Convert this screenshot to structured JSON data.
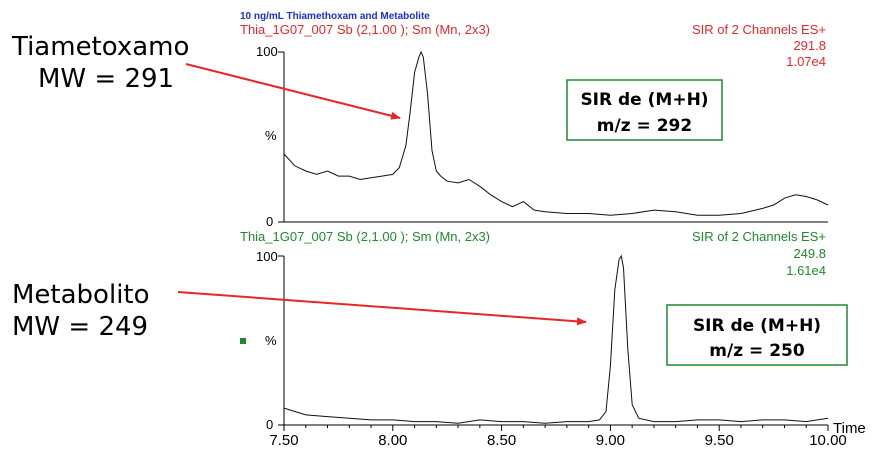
{
  "header": {
    "title": "10 ng/mL Thiamethoxam and Metabolite",
    "title_color": "#1f2fd0"
  },
  "annotations": {
    "top_compound": "Tiametoxamo",
    "top_mw": "MW = 291",
    "bottom_compound": "Metabolito",
    "bottom_mw": "MW = 249",
    "arrow_color": "#e8262a",
    "box_color": "#1e8a2f"
  },
  "chart_data": [
    {
      "type": "line",
      "title": "Thia_1G07_007 Sb (2,1.00 ); Sm (Mn, 2x3)",
      "channel_info": "SIR of 2 Channels ES+",
      "mass": "291.8",
      "intensity": "1.07e4",
      "label_color": "#e8262a",
      "ylabel": "%",
      "ylim": [
        0,
        100
      ],
      "yticks": [
        "100",
        "0"
      ],
      "xlim": [
        7.5,
        10.0
      ],
      "box_line1": "SIR de (M+H)",
      "box_line2": "m/z = 292",
      "series": [
        {
          "x": [
            7.5,
            7.55,
            7.6,
            7.65,
            7.7,
            7.75,
            7.8,
            7.85,
            7.9,
            7.95,
            8.0,
            8.03,
            8.06,
            8.08,
            8.1,
            8.12,
            8.13,
            8.14,
            8.16,
            8.18,
            8.2,
            8.22,
            8.25,
            8.3,
            8.35,
            8.4,
            8.45,
            8.5,
            8.55,
            8.6,
            8.65,
            8.7,
            8.8,
            8.9,
            9.0,
            9.1,
            9.2,
            9.3,
            9.4,
            9.5,
            9.6,
            9.7,
            9.75,
            9.8,
            9.85,
            9.9,
            9.95,
            10.0
          ],
          "values": [
            40,
            33,
            30,
            28,
            30,
            27,
            27,
            25,
            26,
            27,
            28,
            32,
            45,
            65,
            88,
            97,
            100,
            97,
            75,
            42,
            30,
            27,
            24,
            23,
            25,
            21,
            16,
            12,
            9,
            12,
            7,
            6,
            5,
            5,
            4,
            5,
            7,
            6,
            4,
            4,
            5,
            8,
            10,
            14,
            16,
            15,
            13,
            10
          ]
        }
      ]
    },
    {
      "type": "line",
      "title": "Thia_1G07_007 Sb (2,1.00 ); Sm (Mn, 2x3)",
      "channel_info": "SIR of 2 Channels ES+",
      "mass": "249.8",
      "intensity": "1.61e4",
      "label_color": "#1e8a2f",
      "ylabel": "%",
      "ylim": [
        0,
        100
      ],
      "yticks": [
        "100",
        "0"
      ],
      "xlim": [
        7.5,
        10.0
      ],
      "xlabel": "Time",
      "xticks": [
        "7.50",
        "8.00",
        "8.50",
        "9.00",
        "9.50",
        "10.00"
      ],
      "box_line1": "SIR de (M+H)",
      "box_line2": "m/z = 250",
      "series": [
        {
          "x": [
            7.5,
            7.6,
            7.7,
            7.8,
            7.9,
            8.0,
            8.1,
            8.2,
            8.3,
            8.4,
            8.5,
            8.6,
            8.7,
            8.8,
            8.9,
            8.95,
            8.98,
            9.0,
            9.02,
            9.04,
            9.05,
            9.06,
            9.08,
            9.1,
            9.13,
            9.2,
            9.3,
            9.4,
            9.5,
            9.6,
            9.7,
            9.8,
            9.9,
            10.0
          ],
          "values": [
            10,
            6,
            5,
            4,
            3,
            3,
            2,
            2,
            1,
            3,
            2,
            2,
            1,
            2,
            2,
            3,
            8,
            35,
            80,
            98,
            100,
            93,
            45,
            12,
            4,
            2,
            2,
            3,
            3,
            2,
            3,
            3,
            2,
            4
          ]
        }
      ]
    }
  ]
}
